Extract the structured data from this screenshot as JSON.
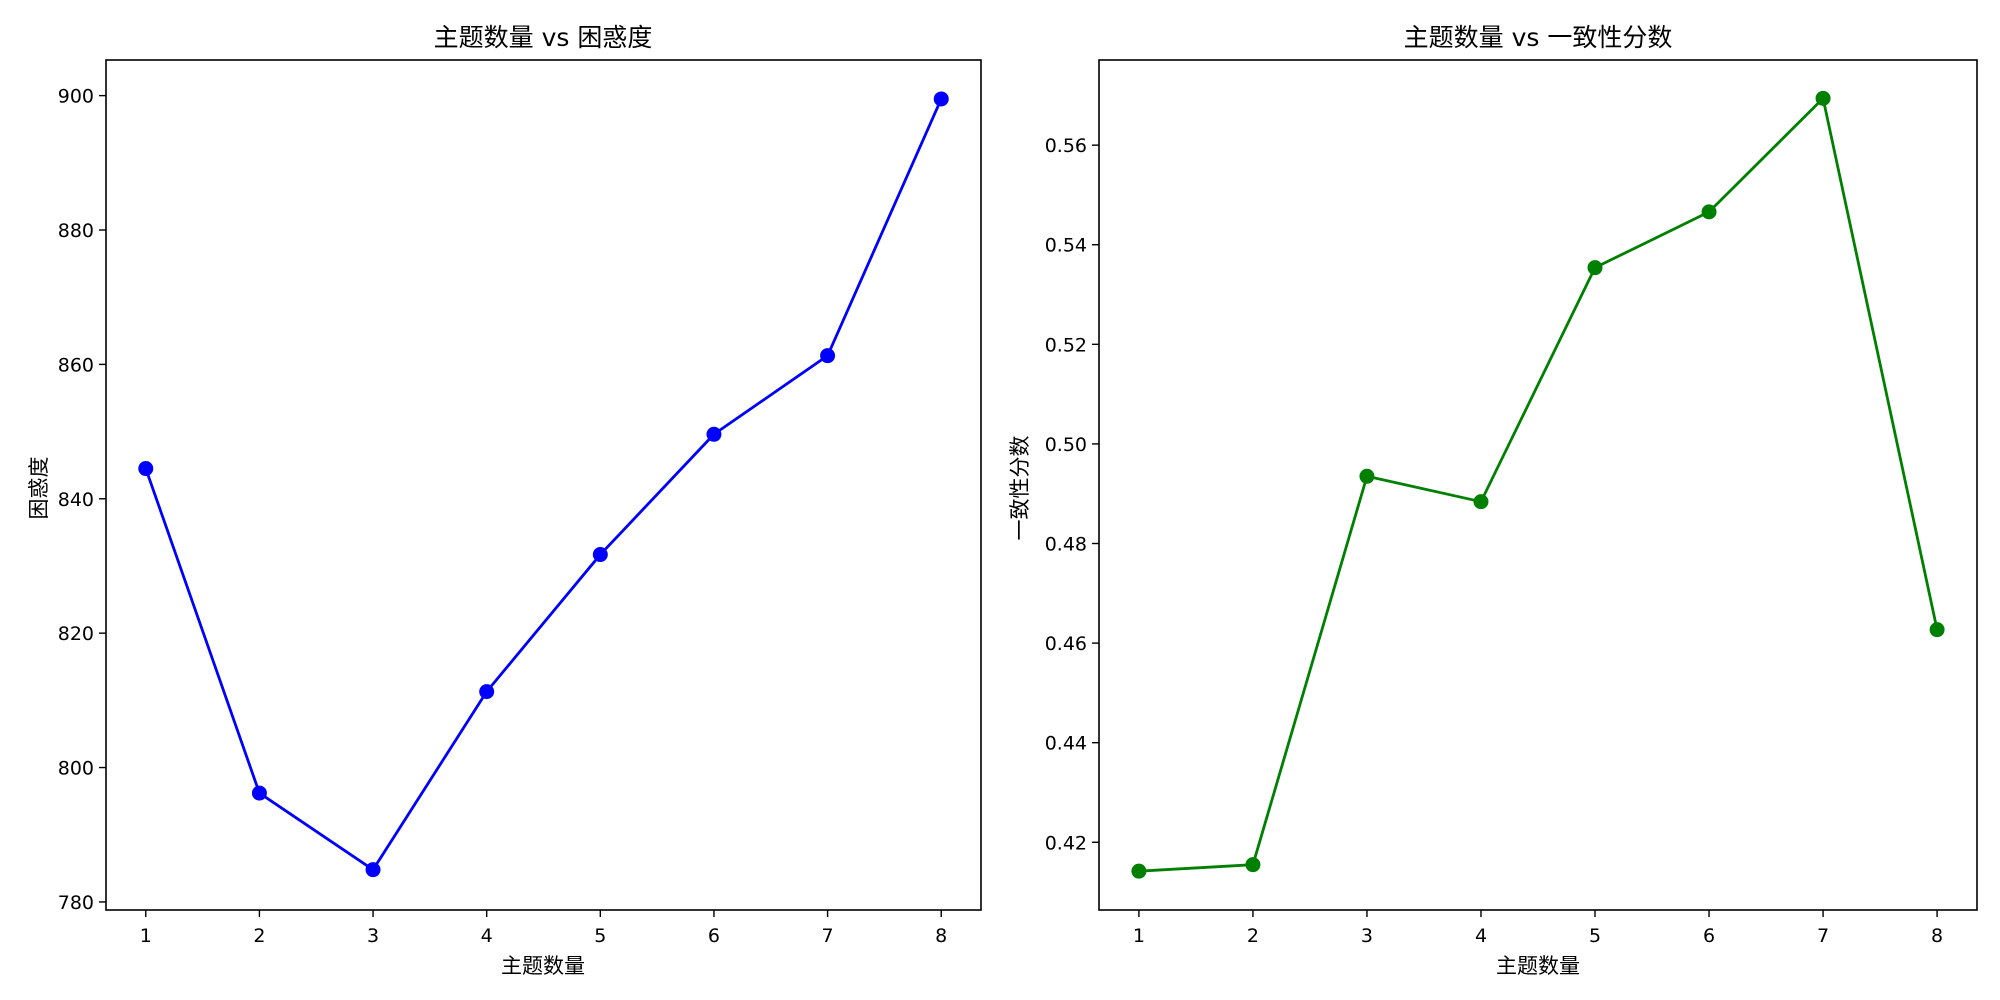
{
  "chart_data": [
    {
      "type": "line",
      "title": "主题数量 vs 困惑度",
      "xlabel": "主题数量",
      "ylabel": "困惑度",
      "x": [
        1,
        2,
        3,
        4,
        5,
        6,
        7,
        8
      ],
      "x_ticks": [
        "1",
        "2",
        "3",
        "4",
        "5",
        "6",
        "7",
        "8"
      ],
      "y_ticks": [
        "780",
        "800",
        "820",
        "840",
        "860",
        "880",
        "900"
      ],
      "y_tick_values": [
        780,
        800,
        820,
        840,
        860,
        880,
        900
      ],
      "xlim": [
        0.65,
        8.35
      ],
      "ylim": [
        778.8,
        905.3
      ],
      "grid": false,
      "series": [
        {
          "values": [
            844.5,
            796.2,
            784.8,
            811.3,
            831.7,
            849.6,
            861.3,
            899.5
          ],
          "color": "#0000ff"
        }
      ]
    },
    {
      "type": "line",
      "title": "主题数量 vs 一致性分数",
      "xlabel": "主题数量",
      "ylabel": "一致性分数",
      "x": [
        1,
        2,
        3,
        4,
        5,
        6,
        7,
        8
      ],
      "x_ticks": [
        "1",
        "2",
        "3",
        "4",
        "5",
        "6",
        "7",
        "8"
      ],
      "y_ticks": [
        "0.42",
        "0.44",
        "0.46",
        "0.48",
        "0.50",
        "0.52",
        "0.54",
        "0.56"
      ],
      "y_tick_values": [
        0.42,
        0.44,
        0.46,
        0.48,
        0.5,
        0.52,
        0.54,
        0.56
      ],
      "xlim": [
        0.65,
        8.35
      ],
      "ylim": [
        0.4064,
        0.5771
      ],
      "grid": false,
      "series": [
        {
          "values": [
            0.4142,
            0.4155,
            0.4935,
            0.4884,
            0.5354,
            0.5466,
            0.5694,
            0.4627
          ],
          "color": "#008000"
        }
      ]
    }
  ]
}
